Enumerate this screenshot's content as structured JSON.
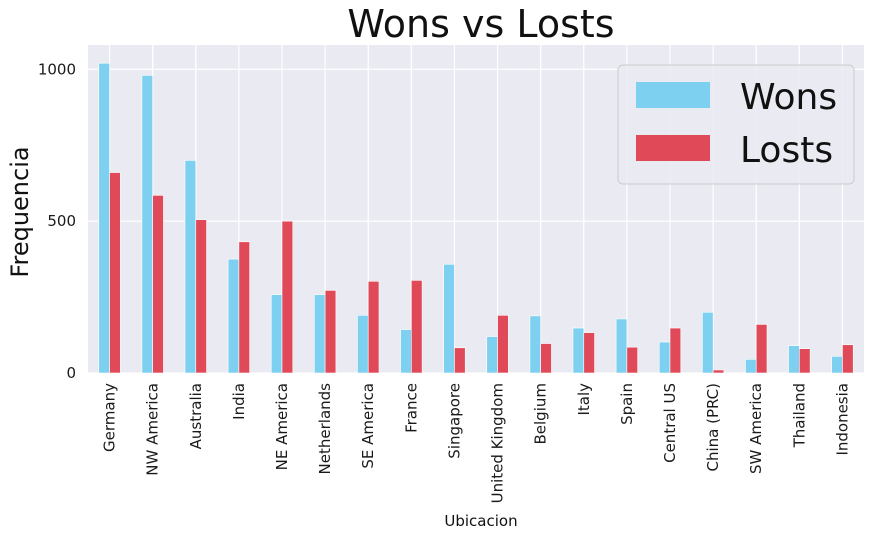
{
  "chart_data": {
    "type": "bar",
    "title": "Wons vs Losts",
    "xlabel": "Ubicacion",
    "ylabel": "Frequencia",
    "ylim": [
      0,
      1080
    ],
    "yticks": [
      0,
      500,
      1000
    ],
    "grid": true,
    "legend_position": "top-right",
    "categories": [
      "Germany",
      "NW America",
      "Australia",
      "India",
      "NE America",
      "Netherlands",
      "SE America",
      "France",
      "Singapore",
      "United Kingdom",
      "Belgium",
      "Italy",
      "Spain",
      "Central US",
      "China (PRC)",
      "SW America",
      "Thailand",
      "Indonesia"
    ],
    "series": [
      {
        "name": "Wons",
        "color": "#7dd0ef",
        "values": [
          1020,
          980,
          700,
          375,
          258,
          258,
          190,
          143,
          358,
          120,
          188,
          148,
          178,
          102,
          200,
          45,
          90,
          55
        ]
      },
      {
        "name": "Losts",
        "color": "#e04a58",
        "values": [
          660,
          585,
          505,
          432,
          500,
          272,
          302,
          305,
          83,
          190,
          97,
          133,
          85,
          148,
          10,
          160,
          80,
          93
        ]
      }
    ]
  }
}
